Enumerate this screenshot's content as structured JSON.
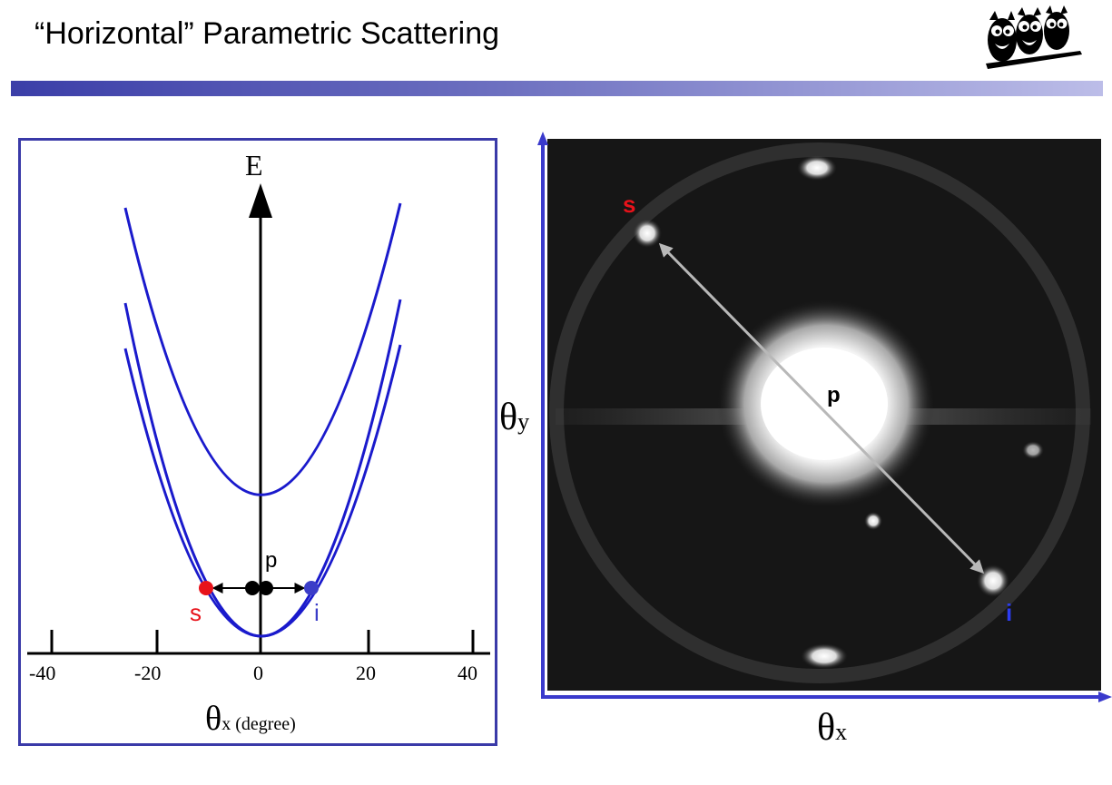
{
  "title": "“Horizontal” Parametric Scattering",
  "left": {
    "energy_axis_label": "E",
    "x_axis_symbol": "θ",
    "x_axis_sub": "x (degree)",
    "tick_labels": [
      "-40",
      "-20",
      "0",
      "20",
      "40"
    ],
    "pump_label": "p",
    "signal_label": "s",
    "idler_label": "i",
    "curve_color": "#1a1acc",
    "signal_color": "#e8121a",
    "idler_color": "#3b3dc8"
  },
  "right": {
    "signal_label": "s",
    "pump_label": "p",
    "idler_label": "i",
    "y_axis_symbol": "θ",
    "y_axis_sub": "y",
    "x_axis_symbol": "θ",
    "x_axis_sub": "x",
    "axis_color": "#3a3acc"
  }
}
